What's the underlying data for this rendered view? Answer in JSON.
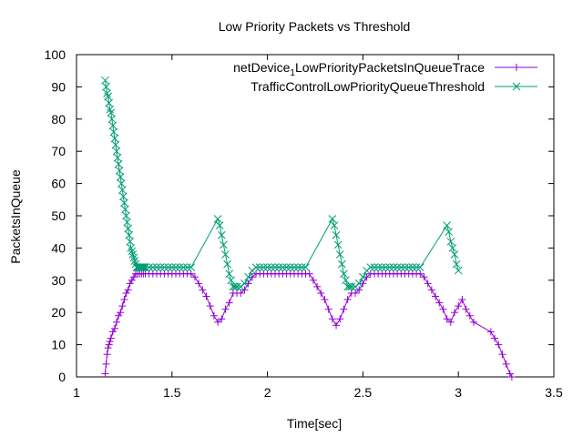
{
  "chart_data": {
    "type": "line",
    "title": "Low Priority Packets vs Threshold",
    "xlabel": "Time[sec]",
    "ylabel": "PacketsInQueue",
    "xlim": [
      1,
      3.5
    ],
    "ylim": [
      0,
      100
    ],
    "xticks": [
      "1",
      "1.5",
      "2",
      "2.5",
      "3",
      "3.5"
    ],
    "yticks": [
      "0",
      "10",
      "20",
      "30",
      "40",
      "50",
      "60",
      "70",
      "80",
      "90",
      "100"
    ],
    "grid": false,
    "legend_position": "top-right",
    "legend_labels": {
      "s1_base": "netDevice",
      "s1_sub": "1",
      "s1_rest": "LowPriorityPacketsInQueueTrace",
      "s2": "TrafficControlLowPriorityQueueThreshold"
    },
    "series": [
      {
        "name": "netDevice_1_LowPriorityPacketsInQueueTrace",
        "color": "#9400d3",
        "marker": "plus",
        "x": [
          1.15,
          1.155,
          1.16,
          1.165,
          1.17,
          1.175,
          1.18,
          1.19,
          1.2,
          1.21,
          1.22,
          1.23,
          1.24,
          1.25,
          1.26,
          1.27,
          1.28,
          1.29,
          1.3,
          1.31,
          1.32,
          1.33,
          1.34,
          1.35,
          1.36,
          1.38,
          1.4,
          1.42,
          1.44,
          1.46,
          1.48,
          1.5,
          1.52,
          1.54,
          1.56,
          1.58,
          1.6,
          1.62,
          1.64,
          1.66,
          1.68,
          1.7,
          1.72,
          1.74,
          1.76,
          1.78,
          1.8,
          1.82,
          1.84,
          1.86,
          1.88,
          1.9,
          1.92,
          1.94,
          1.96,
          1.98,
          2.0,
          2.02,
          2.04,
          2.06,
          2.08,
          2.1,
          2.12,
          2.14,
          2.16,
          2.18,
          2.2,
          2.22,
          2.24,
          2.26,
          2.28,
          2.3,
          2.32,
          2.34,
          2.36,
          2.38,
          2.4,
          2.42,
          2.44,
          2.46,
          2.48,
          2.5,
          2.52,
          2.54,
          2.56,
          2.58,
          2.6,
          2.62,
          2.64,
          2.66,
          2.68,
          2.7,
          2.72,
          2.74,
          2.76,
          2.78,
          2.8,
          2.82,
          2.84,
          2.86,
          2.88,
          2.9,
          2.92,
          2.94,
          2.96,
          2.98,
          3.0,
          3.02,
          3.04,
          3.06,
          3.08,
          3.17,
          3.19,
          3.21,
          3.23,
          3.25,
          3.27,
          3.28
        ],
        "y": [
          1,
          4,
          7,
          9,
          10,
          11,
          12,
          14,
          15,
          17,
          19,
          20,
          22,
          24,
          26,
          27,
          29,
          30,
          31,
          32,
          32,
          32,
          32,
          32,
          32,
          32,
          32,
          32,
          32,
          32,
          32,
          32,
          32,
          32,
          32,
          32,
          32,
          31,
          29,
          27,
          25,
          22,
          19,
          17,
          18,
          21,
          23,
          26,
          26,
          26,
          27,
          29,
          31,
          32,
          32,
          32,
          32,
          32,
          32,
          32,
          32,
          32,
          32,
          32,
          32,
          32,
          32,
          32,
          30,
          28,
          26,
          24,
          21,
          18,
          16,
          18,
          21,
          24,
          26,
          26,
          27,
          29,
          31,
          32,
          32,
          32,
          32,
          32,
          32,
          32,
          32,
          32,
          32,
          32,
          32,
          32,
          32,
          31,
          29,
          27,
          25,
          23,
          21,
          18,
          17,
          20,
          22,
          24,
          21,
          19,
          17,
          14,
          12,
          10,
          7,
          4,
          1,
          0
        ]
      },
      {
        "name": "TrafficControlLowPriorityQueueThreshold",
        "color": "#009e73",
        "marker": "cross",
        "x": [
          1.15,
          1.155,
          1.16,
          1.165,
          1.17,
          1.175,
          1.18,
          1.185,
          1.19,
          1.195,
          1.2,
          1.205,
          1.21,
          1.215,
          1.22,
          1.225,
          1.23,
          1.235,
          1.24,
          1.245,
          1.25,
          1.255,
          1.26,
          1.265,
          1.27,
          1.275,
          1.28,
          1.285,
          1.29,
          1.295,
          1.3,
          1.305,
          1.31,
          1.315,
          1.32,
          1.325,
          1.33,
          1.335,
          1.34,
          1.345,
          1.35,
          1.355,
          1.36,
          1.38,
          1.4,
          1.42,
          1.44,
          1.46,
          1.48,
          1.5,
          1.52,
          1.54,
          1.56,
          1.58,
          1.6,
          1.74,
          1.75,
          1.76,
          1.77,
          1.78,
          1.79,
          1.8,
          1.81,
          1.82,
          1.83,
          1.84,
          1.86,
          1.88,
          1.9,
          1.92,
          1.94,
          1.96,
          1.98,
          2.0,
          2.02,
          2.04,
          2.06,
          2.08,
          2.1,
          2.12,
          2.14,
          2.16,
          2.18,
          2.2,
          2.34,
          2.35,
          2.36,
          2.37,
          2.38,
          2.39,
          2.4,
          2.41,
          2.42,
          2.43,
          2.44,
          2.46,
          2.48,
          2.5,
          2.52,
          2.54,
          2.56,
          2.58,
          2.6,
          2.62,
          2.64,
          2.66,
          2.68,
          2.7,
          2.72,
          2.74,
          2.76,
          2.78,
          2.8,
          2.94,
          2.95,
          2.96,
          2.97,
          2.98,
          2.99,
          3.0
        ],
        "y": [
          92,
          90,
          88,
          87,
          85,
          83,
          82,
          80,
          78,
          76,
          74,
          72,
          70,
          68,
          66,
          64,
          62,
          60,
          58,
          56,
          54,
          52,
          50,
          48,
          46,
          44,
          42,
          40,
          39,
          38,
          37,
          36,
          35,
          34,
          34,
          34,
          34,
          34,
          34,
          34,
          34,
          34,
          34,
          34,
          34,
          34,
          34,
          34,
          34,
          34,
          34,
          34,
          34,
          34,
          34,
          49,
          47,
          44,
          41,
          38,
          35,
          32,
          30,
          28,
          28,
          28,
          28,
          29,
          31,
          33,
          34,
          34,
          34,
          34,
          34,
          34,
          34,
          34,
          34,
          34,
          34,
          34,
          34,
          34,
          49,
          47,
          44,
          41,
          38,
          35,
          32,
          30,
          28,
          28,
          28,
          28,
          29,
          31,
          33,
          34,
          34,
          34,
          34,
          34,
          34,
          34,
          34,
          34,
          34,
          34,
          34,
          34,
          34,
          47,
          45,
          42,
          40,
          38,
          35,
          33
        ]
      }
    ]
  }
}
